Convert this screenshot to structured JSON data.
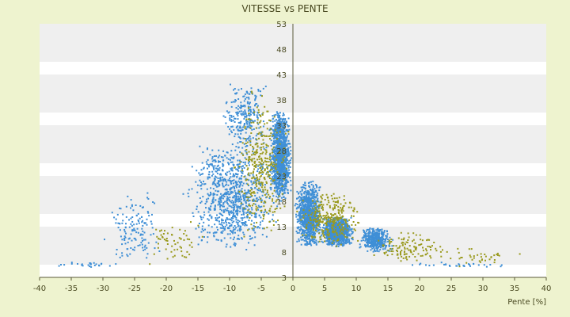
{
  "chart_data": {
    "type": "scatter",
    "title": "VITESSE vs PENTE",
    "xlabel": "Pente [%]",
    "ylabel": "",
    "xlim": [
      -40,
      40
    ],
    "ylim": [
      3,
      53
    ],
    "x_ticks": [
      "-40",
      "-35",
      "-30",
      "-25",
      "-20",
      "-15",
      "-10",
      "-5",
      "0",
      "5",
      "10",
      "15",
      "20",
      "25",
      "30",
      "35",
      "40"
    ],
    "y_ticks": [
      "53",
      "48",
      "43",
      "38",
      "33",
      "28",
      "23",
      "18",
      "13",
      "8",
      "3"
    ],
    "y_tick_values": [
      53,
      48,
      43,
      38,
      33,
      28,
      23,
      18,
      13,
      8,
      3
    ],
    "grid": "horizontal alternating bands",
    "legend": "none",
    "colors": {
      "primary": "#3f8fd6",
      "secondary": "#9a9a1e",
      "bands": "#efefef",
      "background": "#ffffff"
    },
    "series": [
      {
        "color": "#3f8fd6",
        "clusters": [
          {
            "x": [
              -4,
              0
            ],
            "y": [
              18,
              36
            ],
            "n": 1200
          },
          {
            "x": [
              -18,
              -1
            ],
            "y": [
              8,
              30
            ],
            "n": 900
          },
          {
            "x": [
              -12,
              -3
            ],
            "y": [
              28,
              42
            ],
            "n": 250
          },
          {
            "x": [
              0,
              5
            ],
            "y": [
              9,
              22
            ],
            "n": 1000
          },
          {
            "x": [
              4,
              10
            ],
            "y": [
              9,
              15
            ],
            "n": 900
          },
          {
            "x": [
              10,
              16
            ],
            "y": [
              8,
              13
            ],
            "n": 400
          },
          {
            "x": [
              -30,
              -20
            ],
            "y": [
              5,
              20
            ],
            "n": 140
          },
          {
            "x": [
              -40,
              -25
            ],
            "y": [
              5,
              6
            ],
            "n": 25
          },
          {
            "x": [
              16,
              36
            ],
            "y": [
              5,
              6
            ],
            "n": 30
          }
        ]
      },
      {
        "color": "#9a9a1e",
        "clusters": [
          {
            "x": [
              -10,
              0
            ],
            "y": [
              10,
              40
            ],
            "n": 350
          },
          {
            "x": [
              0,
              12
            ],
            "y": [
              9,
              20
            ],
            "n": 300
          },
          {
            "x": [
              12,
              25
            ],
            "y": [
              6,
              12
            ],
            "n": 120
          },
          {
            "x": [
              -25,
              -12
            ],
            "y": [
              5,
              14
            ],
            "n": 60
          },
          {
            "x": [
              20,
              37
            ],
            "y": [
              5,
              9
            ],
            "n": 40
          }
        ]
      }
    ]
  }
}
